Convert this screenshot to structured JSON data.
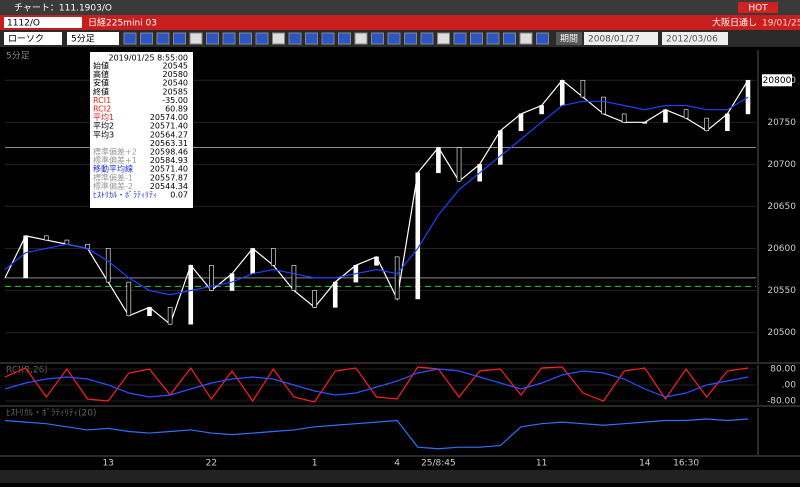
{
  "window": {
    "title": "チャート：111.1903/O",
    "hot": "HOT"
  },
  "header": {
    "code": "1112/O",
    "name": "日経225mini 03",
    "session": "大阪日通し",
    "date": "19/01/25"
  },
  "toolbar": {
    "chart_type": "ローソク",
    "interval": "5分足",
    "period": "期間",
    "from": "2008/01/27",
    "to": "2012/03/06"
  },
  "panel_label": "5分足",
  "info": {
    "datetime": "2019/01/25 8:55:00",
    "rows": [
      {
        "label": "始値",
        "value": "20545"
      },
      {
        "label": "高値",
        "value": "20580"
      },
      {
        "label": "安値",
        "value": "20540"
      },
      {
        "label": "終値",
        "value": "20585"
      },
      {
        "label": "RCI1",
        "value": "-35.00"
      },
      {
        "label": "RCI2",
        "value": "60.89"
      },
      {
        "label": "平均1",
        "value": "20574.00"
      },
      {
        "label": "平均2",
        "value": "20571.40"
      },
      {
        "label": "平均3",
        "value": "20564.27"
      },
      {
        "value": "20563.31"
      },
      {
        "label": "標準偏差+2",
        "value": "20598.46"
      },
      {
        "label": "標準偏差+1",
        "value": "20584.93"
      },
      {
        "label": "移動平均線",
        "value": "20571.40"
      },
      {
        "label": "標準偏差-1",
        "value": "20557.87"
      },
      {
        "label": "標準偏差-2",
        "value": "20544.34"
      },
      {
        "label": "ﾋｽﾄﾘｶﾙ・ﾎﾞﾗﾃｨﾘﾃｨ",
        "value": "0.07"
      }
    ]
  },
  "chart_data": [
    {
      "type": "line",
      "ylim": [
        20836,
        20465
      ],
      "yticks": [
        20800,
        20750,
        20700,
        20650,
        20600,
        20550,
        20500
      ],
      "last_label": "20800",
      "levels": [
        20720,
        20565,
        20555
      ],
      "series": [
        {
          "color": "#ffffff",
          "values": [
            20565,
            20615,
            20610,
            20605,
            20600,
            20560,
            20520,
            20530,
            20510,
            20580,
            20550,
            20570,
            20600,
            20580,
            20550,
            20530,
            20560,
            20580,
            20590,
            20540,
            20690,
            20720,
            20680,
            20700,
            20740,
            20760,
            20770,
            20800,
            20780,
            20760,
            20750,
            20750,
            20765,
            20755,
            20740,
            20760,
            20800
          ]
        },
        {
          "color": "#2040ff",
          "values": [
            20575,
            20595,
            20600,
            20605,
            20600,
            20585,
            20565,
            20550,
            20545,
            20550,
            20555,
            20560,
            20570,
            20575,
            20570,
            20565,
            20565,
            20570,
            20575,
            20570,
            20600,
            20640,
            20670,
            20690,
            20710,
            20730,
            20750,
            20770,
            20775,
            20775,
            20770,
            20765,
            20770,
            20770,
            20765,
            20765,
            20780
          ]
        }
      ],
      "xticks": [
        {
          "pos": 5,
          "label": "13"
        },
        {
          "pos": 10,
          "label": "22"
        },
        {
          "pos": 15,
          "label": "1"
        },
        {
          "pos": 19,
          "label": "4"
        },
        {
          "pos": 21,
          "label": "25/8:45"
        },
        {
          "pos": 26,
          "label": "11"
        },
        {
          "pos": 31,
          "label": "14"
        },
        {
          "pos": 33,
          "label": "16:30"
        }
      ]
    },
    {
      "type": "line",
      "title": "RCI(9,26)",
      "ylim": [
        100,
        -100
      ],
      "yticks": [
        {
          "value": 80,
          "label": "80.00"
        },
        {
          "value": 0,
          "label": ".00"
        },
        {
          "value": -80,
          "label": "-80.00"
        }
      ],
      "series": [
        {
          "color": "#ff2020",
          "values": [
            40,
            85,
            -60,
            80,
            -70,
            -80,
            60,
            80,
            -50,
            85,
            -70,
            70,
            -80,
            80,
            -60,
            -85,
            70,
            85,
            -60,
            -70,
            90,
            80,
            -60,
            70,
            80,
            -50,
            85,
            90,
            -40,
            -80,
            70,
            85,
            -70,
            80,
            -60,
            70,
            85
          ]
        },
        {
          "color": "#3050ff",
          "values": [
            -20,
            10,
            30,
            40,
            30,
            0,
            -40,
            -60,
            -50,
            -20,
            10,
            30,
            40,
            30,
            0,
            -30,
            -50,
            -40,
            -10,
            20,
            60,
            80,
            70,
            40,
            10,
            -20,
            10,
            50,
            70,
            60,
            30,
            -20,
            -60,
            -40,
            0,
            20,
            40
          ]
        }
      ]
    },
    {
      "type": "line",
      "title": "ﾋｽﾄﾘｶﾙ・ﾎﾞﾗﾃｨﾘﾃｨ(20)",
      "ylim": [
        0,
        0.3
      ],
      "series": [
        {
          "color": "#3070ff",
          "values": [
            0.08,
            0.09,
            0.1,
            0.12,
            0.14,
            0.13,
            0.15,
            0.16,
            0.15,
            0.14,
            0.16,
            0.17,
            0.16,
            0.15,
            0.14,
            0.12,
            0.11,
            0.1,
            0.09,
            0.08,
            0.25,
            0.26,
            0.25,
            0.25,
            0.24,
            0.12,
            0.1,
            0.09,
            0.1,
            0.11,
            0.1,
            0.09,
            0.08,
            0.08,
            0.07,
            0.08,
            0.07
          ]
        }
      ]
    }
  ]
}
